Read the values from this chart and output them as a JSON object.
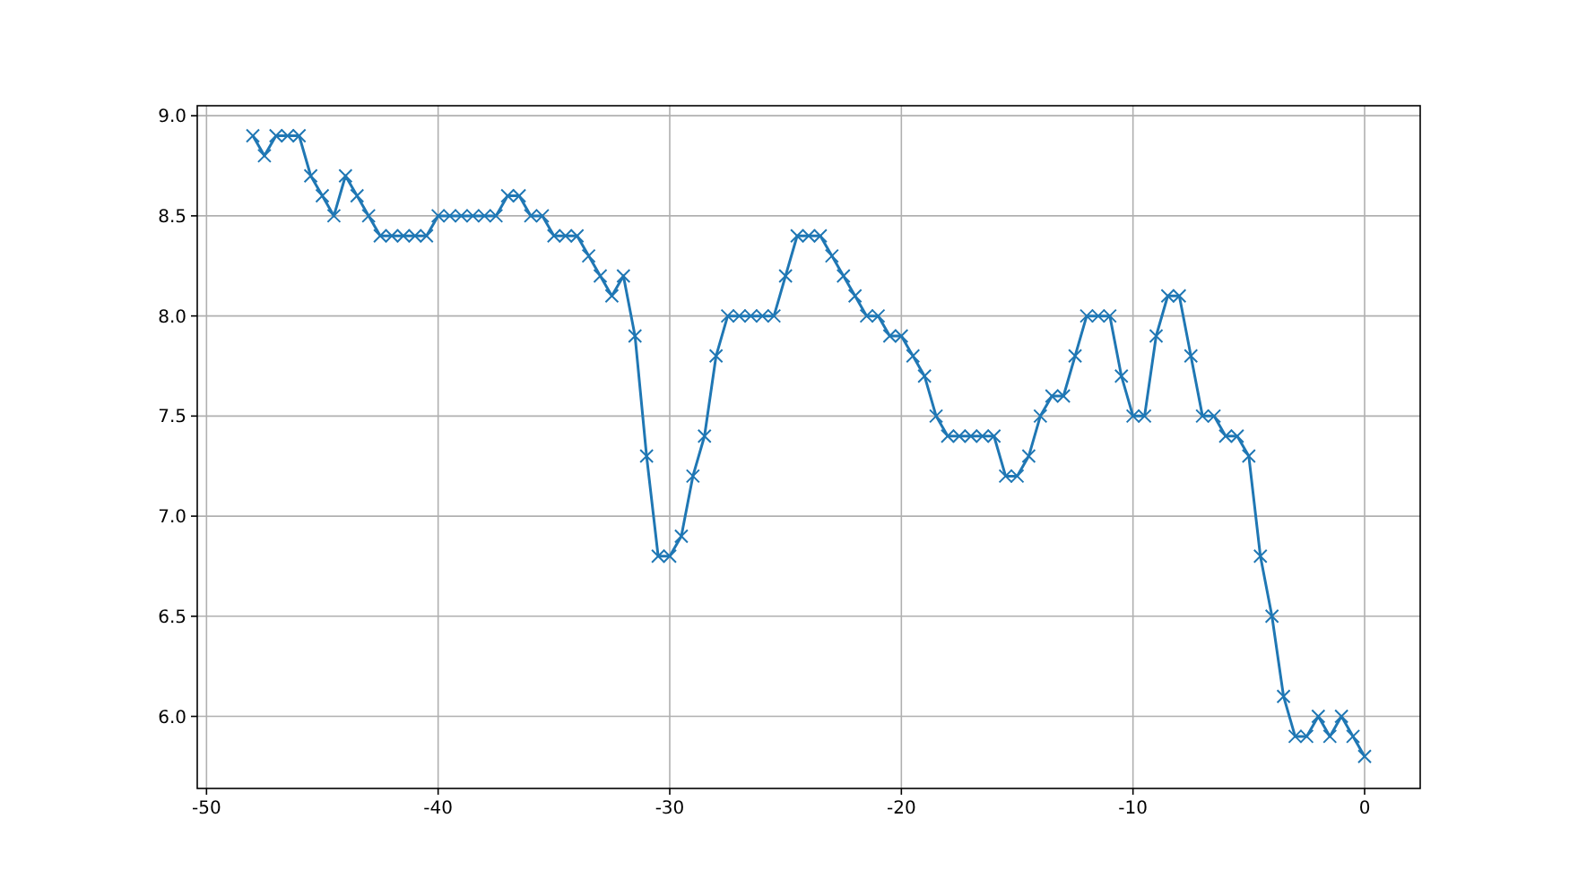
{
  "chart_data": {
    "type": "line",
    "marker": "cross",
    "grid": true,
    "xlim": [
      -50.4,
      2.4
    ],
    "xticks": [
      -50,
      -40,
      -30,
      -20,
      -10,
      0
    ],
    "ylim": [
      5.64,
      9.05
    ],
    "yticks": [
      {
        "value": 6,
        "label": "6.0"
      },
      {
        "value": 6.5,
        "label": "6.5"
      },
      {
        "value": 7,
        "label": "7.0"
      },
      {
        "value": 7.5,
        "label": "7.5"
      },
      {
        "value": 8,
        "label": "8.0"
      },
      {
        "value": 8.5,
        "label": "8.5"
      },
      {
        "value": 9,
        "label": "9.0"
      }
    ],
    "x": [
      -48,
      -47.5,
      -47,
      -46.5,
      -46,
      -45.5,
      -45,
      -44.5,
      -44,
      -43.5,
      -43,
      -42.5,
      -42,
      -41.5,
      -41,
      -40.5,
      -40,
      -39.5,
      -39,
      -38.5,
      -38,
      -37.5,
      -37,
      -36.5,
      -36,
      -35.5,
      -35,
      -34.5,
      -34,
      -33.5,
      -33,
      -32.5,
      -32,
      -31.5,
      -31,
      -30.5,
      -30,
      -29.5,
      -29,
      -28.5,
      -28,
      -27.5,
      -27,
      -26.5,
      -26,
      -25.5,
      -25,
      -24.5,
      -24,
      -23.5,
      -23,
      -22.5,
      -22,
      -21.5,
      -21,
      -20.5,
      -20,
      -19.5,
      -19,
      -18.5,
      -18,
      -17.5,
      -17,
      -16.5,
      -16,
      -15.5,
      -15,
      -14.5,
      -14,
      -13.5,
      -13,
      -12.5,
      -12,
      -11.5,
      -11,
      -10.5,
      -10,
      -9.5,
      -9,
      -8.5,
      -8,
      -7.5,
      -7,
      -6.5,
      -6,
      -5.5,
      -5,
      -4.5,
      -4,
      -3.5,
      -3,
      -2.5,
      -2,
      -1.5,
      -1,
      -0.5,
      0
    ],
    "series": [
      {
        "color": "#1f77b4",
        "values": [
          8.9,
          8.8,
          8.9,
          8.9,
          8.9,
          8.7,
          8.6,
          8.5,
          8.7,
          8.6,
          8.5,
          8.4,
          8.4,
          8.4,
          8.4,
          8.4,
          8.5,
          8.5,
          8.5,
          8.5,
          8.5,
          8.5,
          8.6,
          8.6,
          8.5,
          8.5,
          8.4,
          8.4,
          8.4,
          8.3,
          8.2,
          8.1,
          8.2,
          7.9,
          7.3,
          6.8,
          6.8,
          6.9,
          7.2,
          7.4,
          7.8,
          8.0,
          8.0,
          8.0,
          8.0,
          8.0,
          8.2,
          8.4,
          8.4,
          8.4,
          8.3,
          8.2,
          8.1,
          8.0,
          8.0,
          7.9,
          7.9,
          7.8,
          7.7,
          7.5,
          7.4,
          7.4,
          7.4,
          7.4,
          7.4,
          7.2,
          7.2,
          7.3,
          7.5,
          7.6,
          7.6,
          7.8,
          8.0,
          8.0,
          8.0,
          7.7,
          7.5,
          7.5,
          7.9,
          8.1,
          8.1,
          7.8,
          7.5,
          7.5,
          7.4,
          7.4,
          7.3,
          6.8,
          6.5,
          6.1,
          5.9,
          5.9,
          6.0,
          5.9,
          6.0,
          5.9,
          5.8
        ]
      }
    ]
  }
}
